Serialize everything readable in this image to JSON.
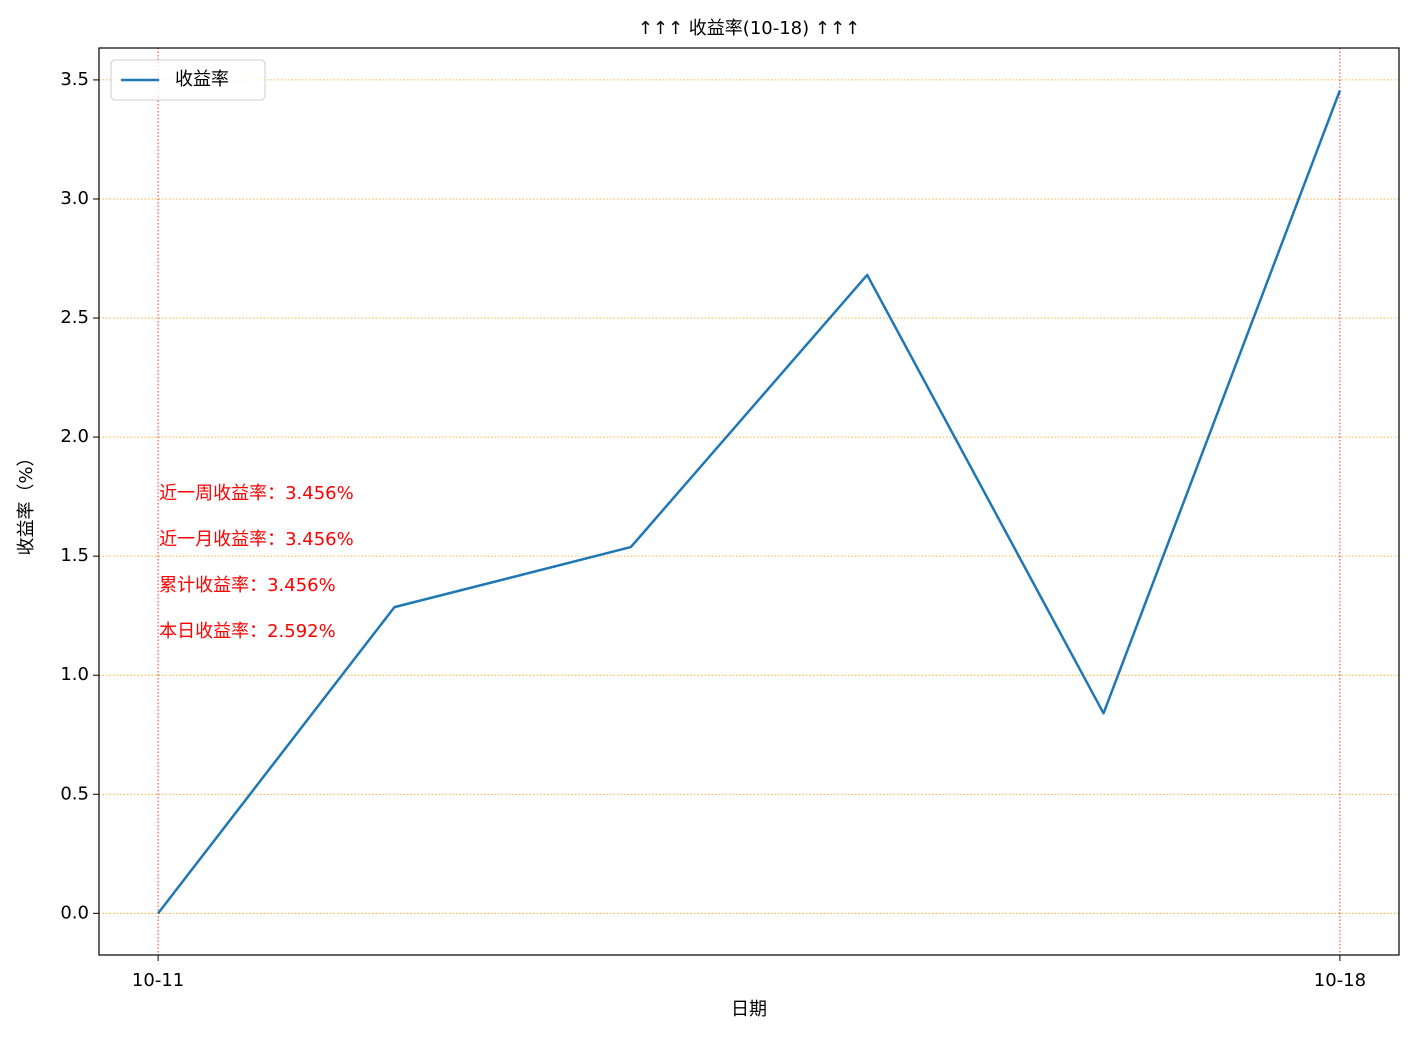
{
  "chart_data": {
    "type": "line",
    "title": "↑↑↑ 收益率(10-18) ↑↑↑",
    "x_label": "日期",
    "y_label": "收益率（%）",
    "categories": [
      "10-11",
      null,
      null,
      null,
      null,
      "10-18"
    ],
    "series": [
      {
        "name": "收益率",
        "color": "#1f77b4",
        "values": [
          0,
          1.286,
          1.538,
          2.681,
          0.84,
          3.456
        ]
      }
    ],
    "ylim": [
      -0.175,
      3.634
    ],
    "yticks": [
      {
        "value": 0,
        "label": "0.0"
      },
      0.5,
      {
        "value": 1,
        "label": "1.0"
      },
      1.5,
      {
        "value": 2,
        "label": "2.0"
      },
      2.5,
      {
        "value": 3,
        "label": "3.0"
      },
      3.5
    ],
    "annotations": [
      "近一周收益率：3.456%",
      "近一月收益率：3.456%",
      "累计收益率：3.456%",
      "本日收益率：2.592%"
    ],
    "annotation_color": "#ff0000",
    "grid": true,
    "y_grid_color": "#ff9900",
    "x_grid_color": "#ff0000",
    "legend": "upper left"
  }
}
